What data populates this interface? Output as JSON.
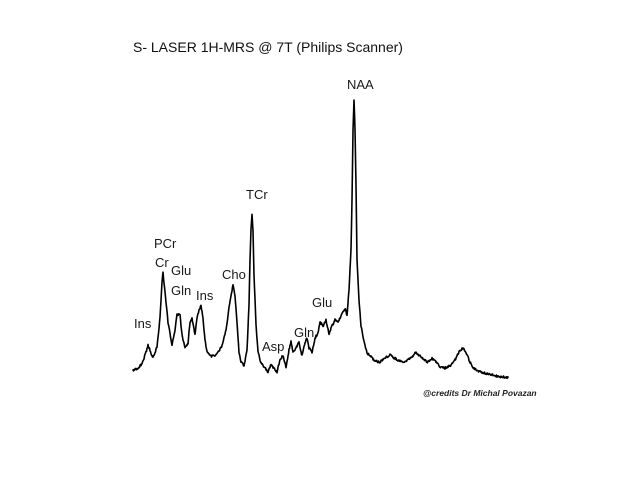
{
  "chart_data": {
    "type": "line",
    "title": "S- LASER  1H-MRS @ 7T  (Philips Scanner)",
    "credit": "@credits Dr Michal Povazan",
    "grid": false,
    "axes_visible": false,
    "line_color": "#000000",
    "peaks": [
      {
        "label": "Ins"
      },
      {
        "label": "PCr"
      },
      {
        "label": "Cr"
      },
      {
        "label": "Glu"
      },
      {
        "label": "Gln"
      },
      {
        "label": "Ins"
      },
      {
        "label": "Cho"
      },
      {
        "label": "TCr"
      },
      {
        "label": "Asp"
      },
      {
        "label": "Gln"
      },
      {
        "label": "Glu"
      },
      {
        "label": "NAA"
      }
    ]
  }
}
